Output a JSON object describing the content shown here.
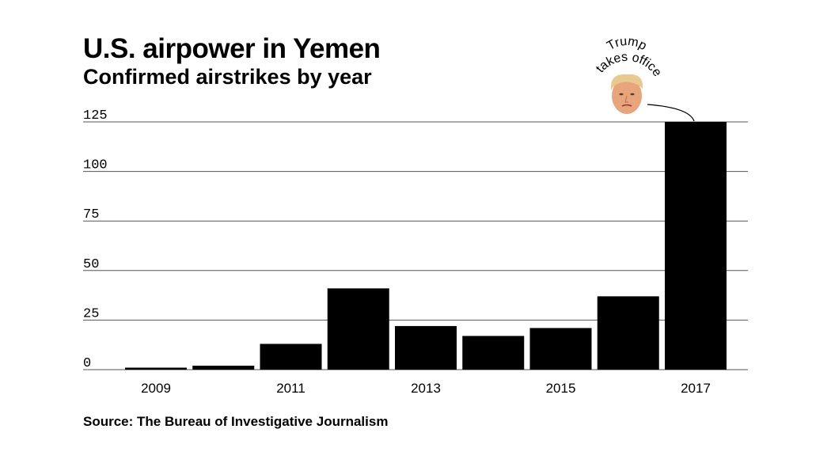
{
  "chart_data": {
    "type": "bar",
    "title": "U.S. airpower in Yemen",
    "subtitle": "Confirmed airstrikes by year",
    "source": "Source: The Bureau of Investigative Journalism",
    "categories": [
      "2009",
      "2010",
      "2011",
      "2012",
      "2013",
      "2014",
      "2015",
      "2016",
      "2017"
    ],
    "x_tick_labels": [
      "2009",
      "",
      "2011",
      "",
      "2013",
      "",
      "2015",
      "",
      "2017"
    ],
    "values": [
      1,
      2,
      13,
      41,
      22,
      17,
      21,
      37,
      125
    ],
    "y_ticks": [
      "0",
      "25",
      "50",
      "75",
      "100",
      "125"
    ],
    "ylim": [
      0,
      125
    ],
    "xlabel": "",
    "ylabel": "",
    "grid": true,
    "bar_color": "#000000",
    "annotation": {
      "line1": "Trump",
      "line2": "takes office",
      "icon": "trump-face-icon",
      "category": "2017"
    }
  }
}
